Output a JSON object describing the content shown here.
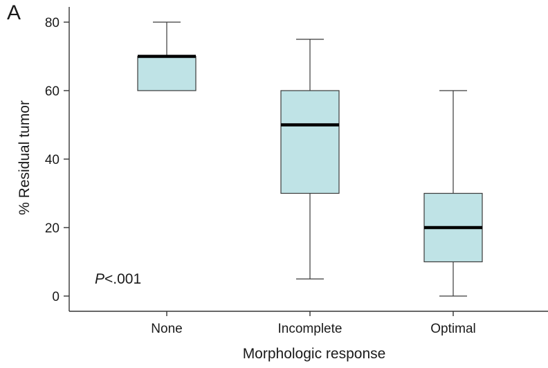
{
  "panel_label": "A",
  "annotation": {
    "italic": "P",
    "rest": "<.001"
  },
  "colors": {
    "box_fill": "#bfe3e6",
    "box_stroke": "#3a3a3a",
    "median": "#000000",
    "axis": "#333333"
  },
  "chart_data": {
    "type": "box",
    "title": "",
    "xlabel": "Morphologic response",
    "ylabel": "% Residual tumor",
    "ylim": [
      0,
      80
    ],
    "yticks": [
      0,
      20,
      40,
      60,
      80
    ],
    "grid": false,
    "categories": [
      "None",
      "Incomplete",
      "Optimal"
    ],
    "boxes": [
      {
        "category": "None",
        "whisker_low": 60,
        "q1": 60,
        "median": 70,
        "q3": 70,
        "whisker_high": 80
      },
      {
        "category": "Incomplete",
        "whisker_low": 5,
        "q1": 30,
        "median": 50,
        "q3": 60,
        "whisker_high": 75
      },
      {
        "category": "Optimal",
        "whisker_low": 0,
        "q1": 10,
        "median": 20,
        "q3": 30,
        "whisker_high": 60
      }
    ]
  }
}
